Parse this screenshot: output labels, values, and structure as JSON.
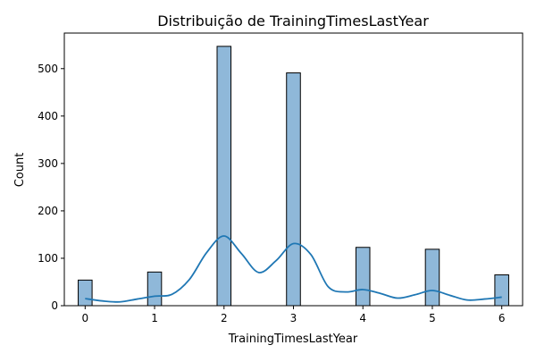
{
  "chart_data": {
    "type": "bar",
    "title": "Distribuição de TrainingTimesLastYear",
    "xlabel": "TrainingTimesLastYear",
    "ylabel": "Count",
    "bin_width": 0.2,
    "bins": [
      {
        "x": 0,
        "count": 54
      },
      {
        "x": 1,
        "count": 71
      },
      {
        "x": 2,
        "count": 547
      },
      {
        "x": 3,
        "count": 491
      },
      {
        "x": 4,
        "count": 123
      },
      {
        "x": 5,
        "count": 119
      },
      {
        "x": 6,
        "count": 65
      }
    ],
    "kde": {
      "x": [
        0,
        0.25,
        0.5,
        0.75,
        1,
        1.25,
        1.5,
        1.75,
        2,
        2.25,
        2.5,
        2.75,
        3,
        3.25,
        3.5,
        3.75,
        4,
        4.25,
        4.5,
        4.75,
        5,
        5.25,
        5.5,
        5.75,
        6
      ],
      "y": [
        15,
        10,
        8,
        14,
        20,
        24,
        55,
        112,
        147,
        110,
        70,
        95,
        131,
        108,
        40,
        29,
        34,
        26,
        16,
        23,
        32,
        22,
        12,
        14,
        18
      ]
    },
    "xlim": [
      -0.3,
      6.3
    ],
    "ylim": [
      0,
      575
    ],
    "xticks": [
      "0",
      "1",
      "2",
      "3",
      "4",
      "5",
      "6"
    ],
    "yticks": [
      "0",
      "100",
      "200",
      "300",
      "400",
      "500"
    ],
    "grid": false,
    "legend": "none",
    "colors": {
      "bar_fill": "#8fb8d9",
      "bar_edge": "#000000",
      "kde_line": "#1f77b4"
    }
  }
}
